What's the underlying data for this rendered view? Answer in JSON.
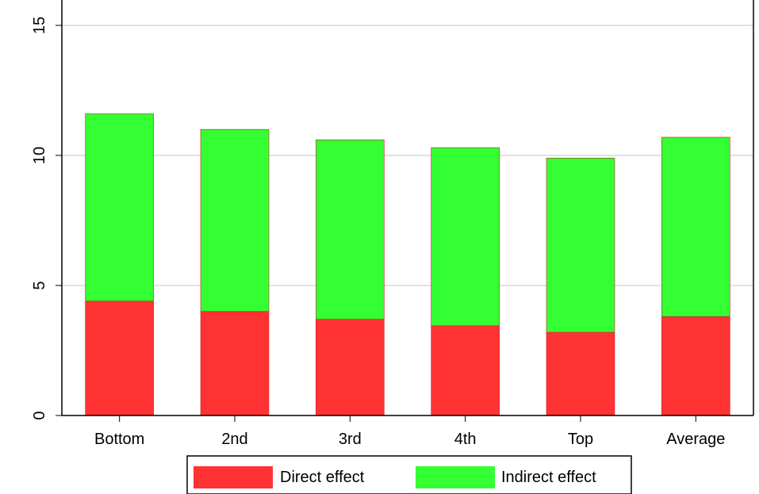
{
  "chart_data": {
    "type": "bar",
    "stacked": true,
    "title": "",
    "xlabel": "",
    "ylabel": "",
    "ylim": [
      0,
      15
    ],
    "yticks": [
      "0",
      "5",
      "10",
      "15"
    ],
    "grid": true,
    "legend_position": "bottom",
    "categories": [
      "Bottom",
      "2nd",
      "3rd",
      "4th",
      "Top",
      "Average"
    ],
    "series": [
      {
        "name": "Direct effect",
        "color": "#ff3333",
        "values": [
          4.4,
          4.0,
          3.7,
          3.45,
          3.2,
          3.8
        ]
      },
      {
        "name": "Indirect effect",
        "color": "#33ff33",
        "values": [
          7.2,
          7.0,
          6.9,
          6.85,
          6.7,
          6.9
        ]
      }
    ]
  }
}
